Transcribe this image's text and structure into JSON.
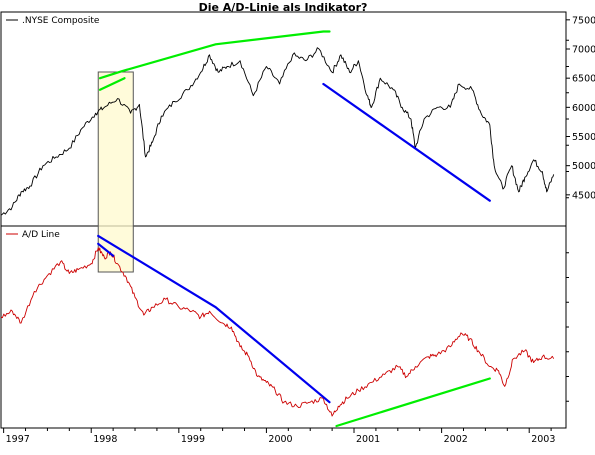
{
  "chart_data": {
    "type": "line",
    "title": "Die A/D-Linie als Indikator?",
    "x_tick_labels": [
      "1997",
      "1998",
      "1999",
      "2000",
      "2001",
      "2002",
      "2003"
    ],
    "x_ticks": [
      1997.0,
      1998.0,
      1999.0,
      2000.0,
      2001.0,
      2002.0,
      2003.0
    ],
    "xlim": [
      1996.97,
      2003.42
    ],
    "panels": [
      {
        "name": "nyse-panel",
        "legend": ".NYSE Composite",
        "color": "#000000",
        "ylim": [
          4000,
          7600
        ],
        "y_ticks": [
          4500,
          5000,
          5500,
          6000,
          6500,
          7000,
          7500
        ],
        "y_tick_labels": [
          "4500",
          "5000",
          "5500",
          "6000",
          "6500",
          "7000",
          "7500"
        ],
        "series_points": [
          [
            1996.97,
            4150
          ],
          [
            1997.1,
            4300
          ],
          [
            1997.2,
            4550
          ],
          [
            1997.3,
            4650
          ],
          [
            1997.45,
            5000
          ],
          [
            1997.6,
            5150
          ],
          [
            1997.75,
            5300
          ],
          [
            1997.9,
            5650
          ],
          [
            1998.05,
            5900
          ],
          [
            1998.15,
            6000
          ],
          [
            1998.3,
            6150
          ],
          [
            1998.45,
            5900
          ],
          [
            1998.55,
            6050
          ],
          [
            1998.62,
            5150
          ],
          [
            1998.7,
            5400
          ],
          [
            1998.8,
            5850
          ],
          [
            1998.95,
            6100
          ],
          [
            1999.1,
            6300
          ],
          [
            1999.25,
            6600
          ],
          [
            1999.35,
            6900
          ],
          [
            1999.45,
            6600
          ],
          [
            1999.55,
            6700
          ],
          [
            1999.7,
            6800
          ],
          [
            1999.85,
            6200
          ],
          [
            2000.0,
            6700
          ],
          [
            2000.15,
            6400
          ],
          [
            2000.3,
            6900
          ],
          [
            2000.45,
            6800
          ],
          [
            2000.6,
            7000
          ],
          [
            2000.75,
            6600
          ],
          [
            2000.85,
            6900
          ],
          [
            2000.95,
            6600
          ],
          [
            2001.05,
            6800
          ],
          [
            2001.15,
            6200
          ],
          [
            2001.2,
            6000
          ],
          [
            2001.3,
            6500
          ],
          [
            2001.45,
            6300
          ],
          [
            2001.55,
            6000
          ],
          [
            2001.65,
            5800
          ],
          [
            2001.7,
            5300
          ],
          [
            2001.8,
            5800
          ],
          [
            2001.95,
            6000
          ],
          [
            2002.1,
            6000
          ],
          [
            2002.2,
            6400
          ],
          [
            2002.35,
            6300
          ],
          [
            2002.45,
            5900
          ],
          [
            2002.55,
            5700
          ],
          [
            2002.6,
            5000
          ],
          [
            2002.7,
            4600
          ],
          [
            2002.8,
            5000
          ],
          [
            2002.88,
            4550
          ],
          [
            2002.95,
            4800
          ],
          [
            2003.05,
            5100
          ],
          [
            2003.15,
            4900
          ],
          [
            2003.2,
            4550
          ],
          [
            2003.28,
            4850
          ]
        ],
        "trendlines": [
          {
            "color": "#00ee00",
            "points": [
              [
                2000.72,
                7300
              ],
              [
                2000.65,
                7300
              ],
              [
                1999.42,
                7080
              ],
              [
                1998.35,
                6620
              ],
              [
                1998.1,
                6500
              ]
            ]
          },
          {
            "color": "#00ee00",
            "points": [
              [
                1998.1,
                6300
              ],
              [
                1998.38,
                6500
              ]
            ]
          },
          {
            "color": "#0000ee",
            "points": [
              [
                2000.65,
                6400
              ],
              [
                2002.55,
                4400
              ]
            ]
          }
        ]
      },
      {
        "name": "ad-panel",
        "legend": "A/D Line",
        "color": "#cc0000",
        "ylim": [
          0,
          100
        ],
        "y_ticks": [],
        "series_points": [
          [
            1996.97,
            55
          ],
          [
            1997.1,
            58
          ],
          [
            1997.2,
            52
          ],
          [
            1997.35,
            68
          ],
          [
            1997.5,
            76
          ],
          [
            1997.65,
            83
          ],
          [
            1997.75,
            77
          ],
          [
            1997.85,
            79
          ],
          [
            1998.0,
            82
          ],
          [
            1998.08,
            90
          ],
          [
            1998.15,
            85
          ],
          [
            1998.22,
            88
          ],
          [
            1998.3,
            82
          ],
          [
            1998.4,
            75
          ],
          [
            1998.5,
            65
          ],
          [
            1998.6,
            56
          ],
          [
            1998.7,
            60
          ],
          [
            1998.85,
            64
          ],
          [
            1999.0,
            60
          ],
          [
            1999.15,
            58
          ],
          [
            1999.25,
            55
          ],
          [
            1999.35,
            58
          ],
          [
            1999.5,
            52
          ],
          [
            1999.6,
            50
          ],
          [
            1999.7,
            40
          ],
          [
            1999.8,
            35
          ],
          [
            1999.9,
            25
          ],
          [
            2000.0,
            22
          ],
          [
            2000.1,
            18
          ],
          [
            2000.2,
            12
          ],
          [
            2000.35,
            10
          ],
          [
            2000.5,
            12
          ],
          [
            2000.65,
            14
          ],
          [
            2000.75,
            5
          ],
          [
            2000.82,
            10
          ],
          [
            2000.92,
            14
          ],
          [
            2001.05,
            18
          ],
          [
            2001.2,
            22
          ],
          [
            2001.35,
            26
          ],
          [
            2001.5,
            30
          ],
          [
            2001.6,
            25
          ],
          [
            2001.7,
            30
          ],
          [
            2001.85,
            35
          ],
          [
            2001.95,
            36
          ],
          [
            2002.1,
            40
          ],
          [
            2002.22,
            47
          ],
          [
            2002.32,
            44
          ],
          [
            2002.42,
            38
          ],
          [
            2002.55,
            30
          ],
          [
            2002.65,
            28
          ],
          [
            2002.72,
            20
          ],
          [
            2002.82,
            34
          ],
          [
            2002.95,
            38
          ],
          [
            2003.05,
            32
          ],
          [
            2003.15,
            35
          ],
          [
            2003.28,
            34
          ]
        ],
        "trendlines": [
          {
            "color": "#0000ee",
            "points": [
              [
                1998.08,
                96
              ],
              [
                1999.42,
                60
              ],
              [
                2000.72,
                12
              ]
            ]
          },
          {
            "color": "#0000ee",
            "points": [
              [
                1998.08,
                92
              ],
              [
                1998.25,
                86
              ]
            ]
          },
          {
            "color": "#00ee00",
            "points": [
              [
                2000.8,
                0
              ],
              [
                2002.55,
                24
              ]
            ]
          }
        ]
      }
    ],
    "highlight_range": [
      1998.08,
      1998.48
    ],
    "grid": false
  }
}
